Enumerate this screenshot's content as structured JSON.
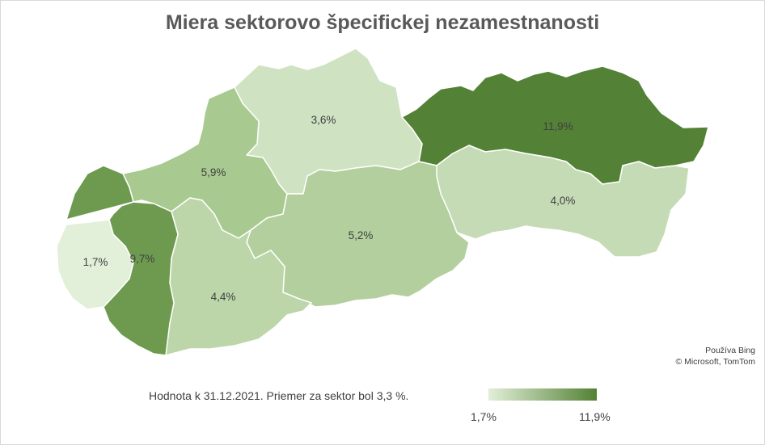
{
  "title": "Miera sektorovo špecifickej nezamestnanosti",
  "regions": [
    {
      "id": "presov",
      "label": "11,9%",
      "value": 11.9,
      "color": "#538135"
    },
    {
      "id": "kosice",
      "label": "4,0%",
      "value": 4.0,
      "color": "#c5dbb5"
    },
    {
      "id": "zilina",
      "label": "3,6%",
      "value": 3.6,
      "color": "#cfe2c1"
    },
    {
      "id": "trencin",
      "label": "5,9%",
      "value": 5.9,
      "color": "#a8c98f"
    },
    {
      "id": "banska-bystrica",
      "label": "5,2%",
      "value": 5.2,
      "color": "#b3cf9e"
    },
    {
      "id": "nitra",
      "label": "4,4%",
      "value": 4.4,
      "color": "#bcd6a9"
    },
    {
      "id": "trnava",
      "label": "9,7%",
      "value": 9.7,
      "color": "#6d9a4f"
    },
    {
      "id": "bratislava",
      "label": "1,7%",
      "value": 1.7,
      "color": "#e2efd9"
    }
  ],
  "attribution": {
    "line1": "Používa Bing",
    "line2": "© Microsoft, TomTom"
  },
  "note": "Hodnota k 31.12.2021. Priemer za sektor bol 3,3 %.",
  "legend": {
    "min_label": "1,7%",
    "max_label": "11,9%",
    "min_color": "#e2efd9",
    "max_color": "#538135"
  }
}
